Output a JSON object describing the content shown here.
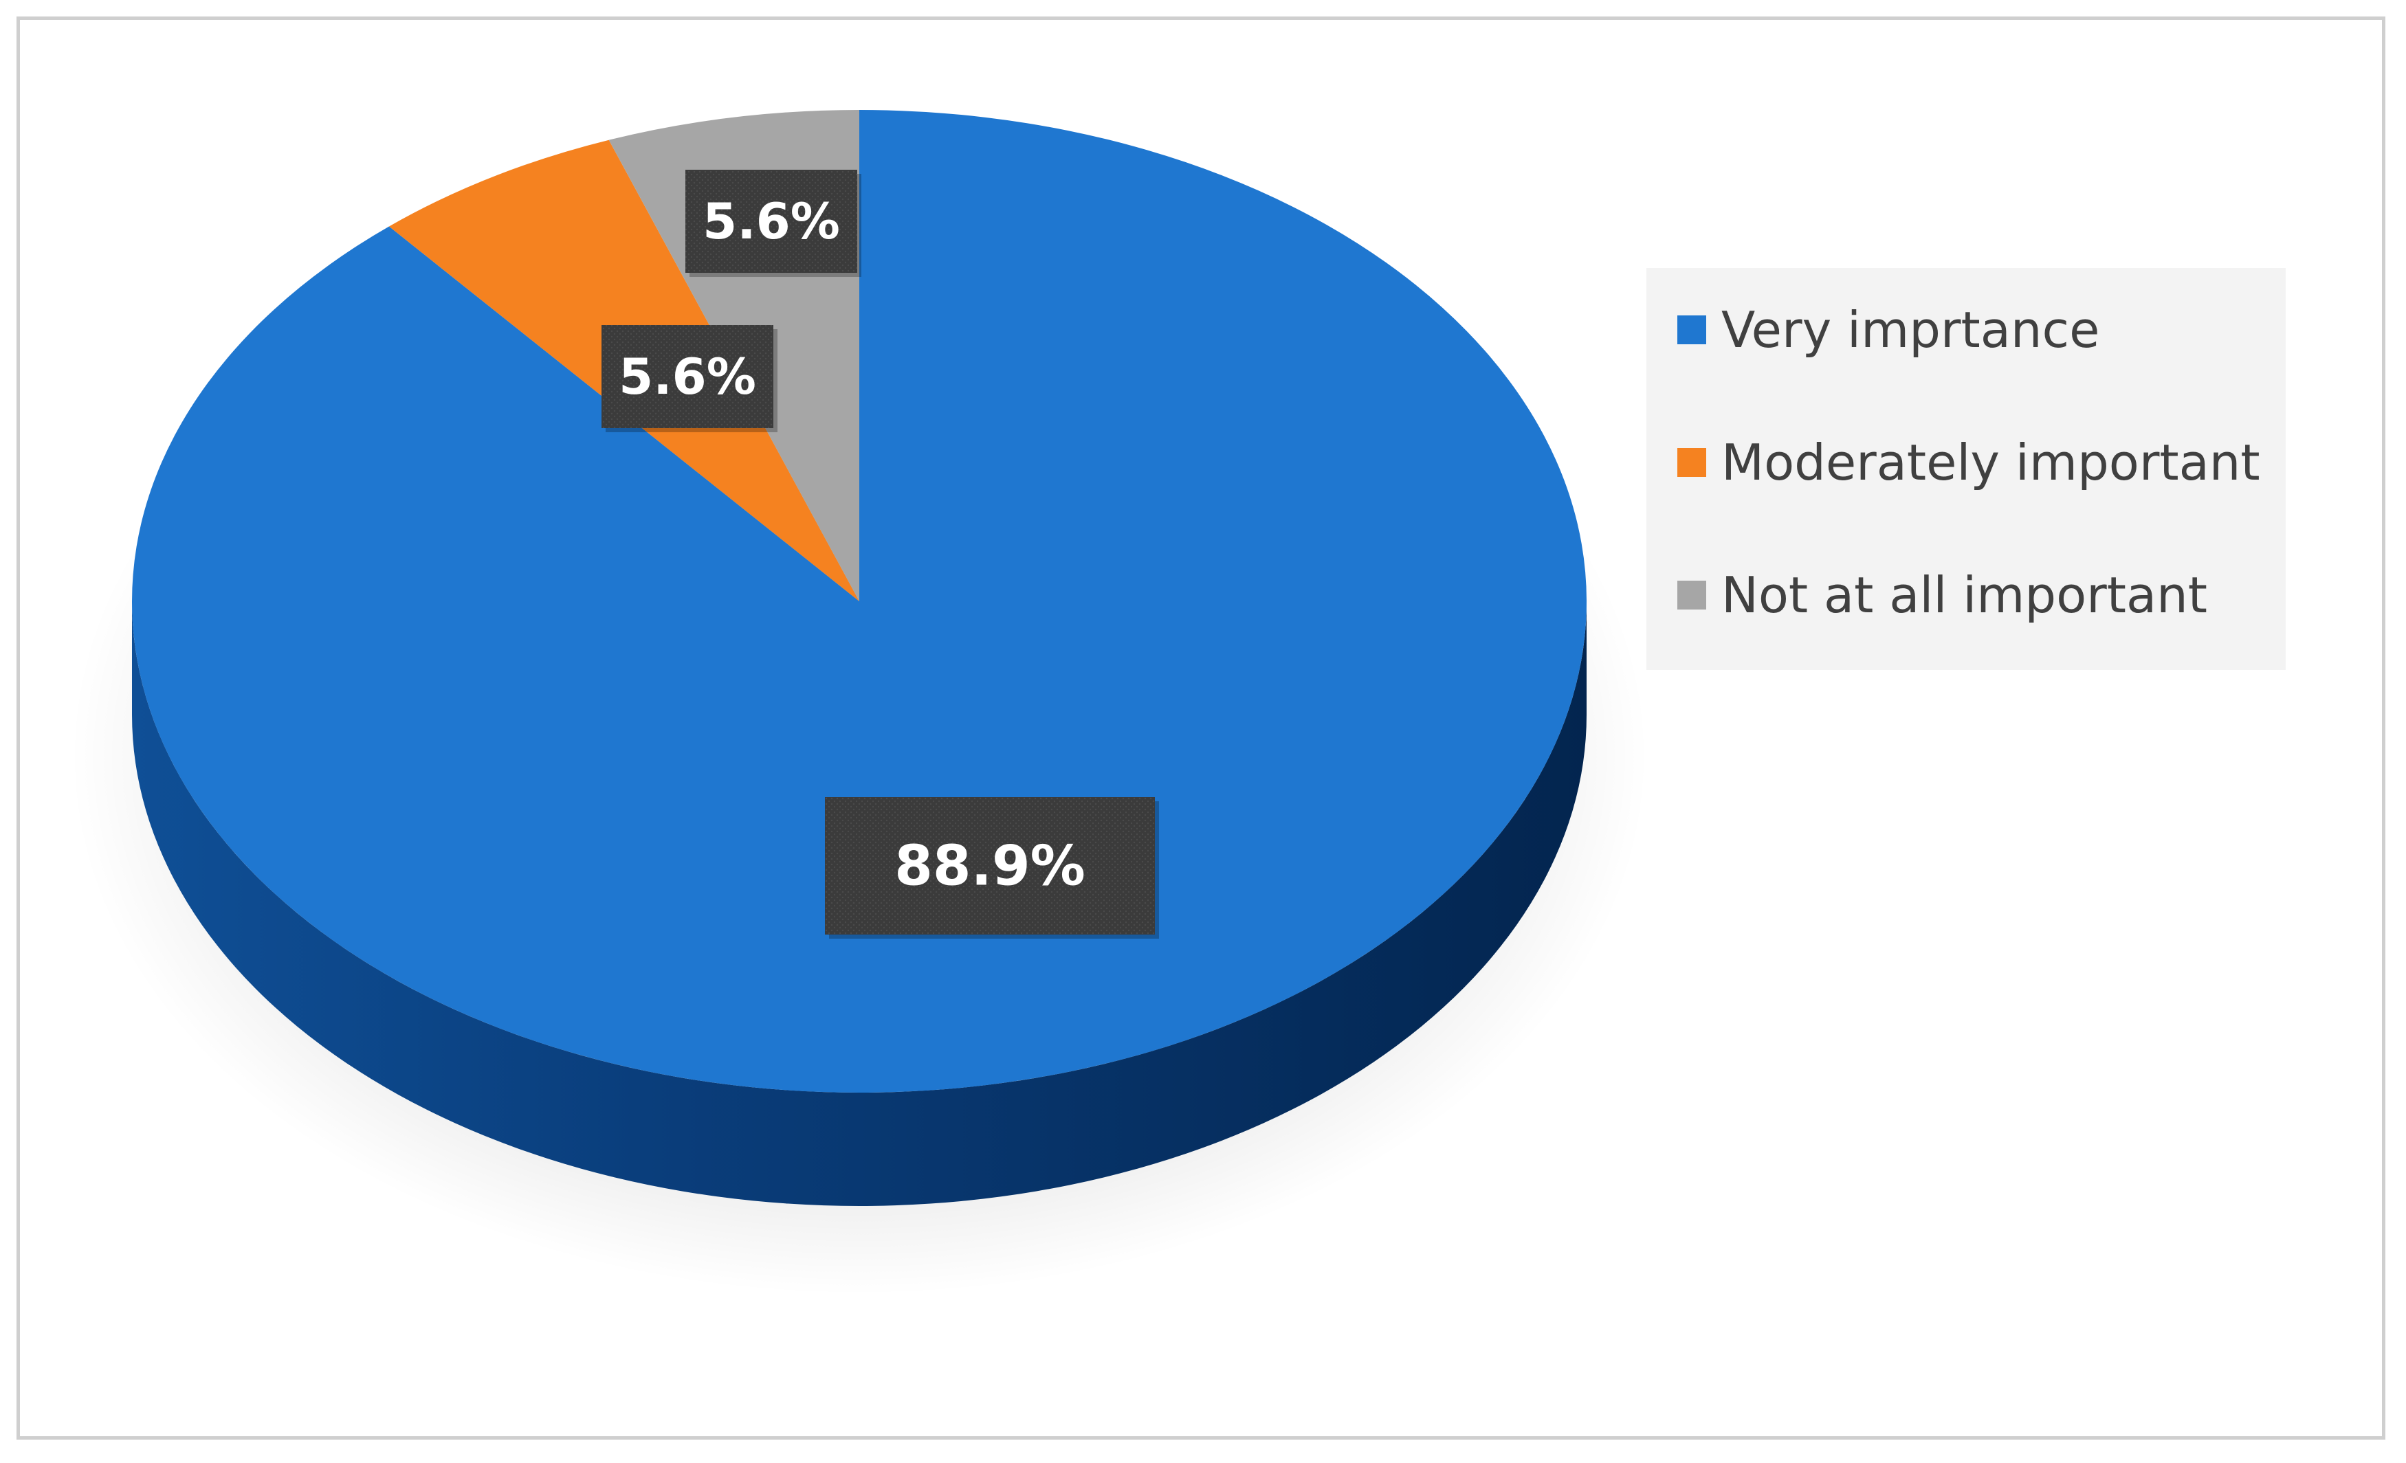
{
  "chart_data": {
    "type": "pie",
    "title": "",
    "slices": [
      {
        "label": "Very imprtance",
        "value": 88.9,
        "data_label": "88.9%",
        "color": "#1f77d0"
      },
      {
        "label": "Moderately important",
        "value": 5.6,
        "data_label": "5.6%",
        "color": "#f58220"
      },
      {
        "label": "Not at all important",
        "value": 5.6,
        "data_label": "5.6%",
        "color": "#a6a6a6"
      }
    ],
    "legend_position": "right",
    "style": "3d"
  }
}
